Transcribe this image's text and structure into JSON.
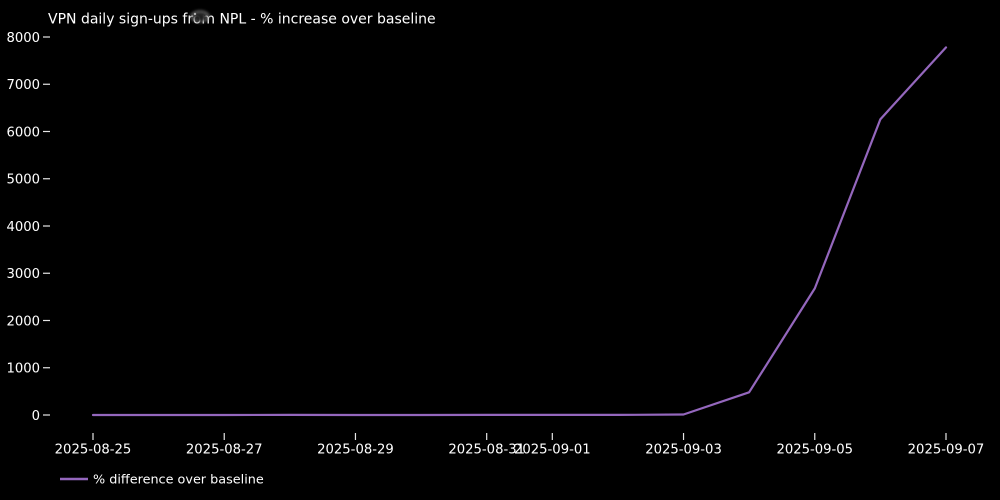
{
  "chart_data": {
    "type": "line",
    "title": "VPN daily sign-ups from NPL - % increase over baseline",
    "xlabel": "",
    "ylabel": "",
    "grid": false,
    "legend_position": "lower-left-outside",
    "background": "#000000",
    "text_color": "#ffffff",
    "tick_color": "#e6e6e6",
    "x": [
      "2025-08-25",
      "2025-08-26",
      "2025-08-27",
      "2025-08-28",
      "2025-08-29",
      "2025-08-30",
      "2025-08-31",
      "2025-09-01",
      "2025-09-02",
      "2025-09-03",
      "2025-09-04",
      "2025-09-05",
      "2025-09-06",
      "2025-09-07"
    ],
    "series": [
      {
        "name": "% difference over baseline",
        "color": "#9467bd",
        "values": [
          0,
          1,
          0,
          2,
          1,
          1,
          2,
          3,
          2,
          10,
          480,
          2680,
          6260,
          7780
        ]
      }
    ],
    "x_tick_labels": [
      "2025-08-25",
      "2025-08-27",
      "2025-08-29",
      "2025-08-31",
      "2025-09-01",
      "2025-09-03",
      "2025-09-05",
      "2025-09-07"
    ],
    "y_ticks": [
      0,
      1000,
      2000,
      3000,
      4000,
      5000,
      6000,
      7000,
      8000
    ],
    "ylim": [
      -380,
      8150
    ]
  },
  "legend": {
    "label": "% difference over baseline"
  }
}
